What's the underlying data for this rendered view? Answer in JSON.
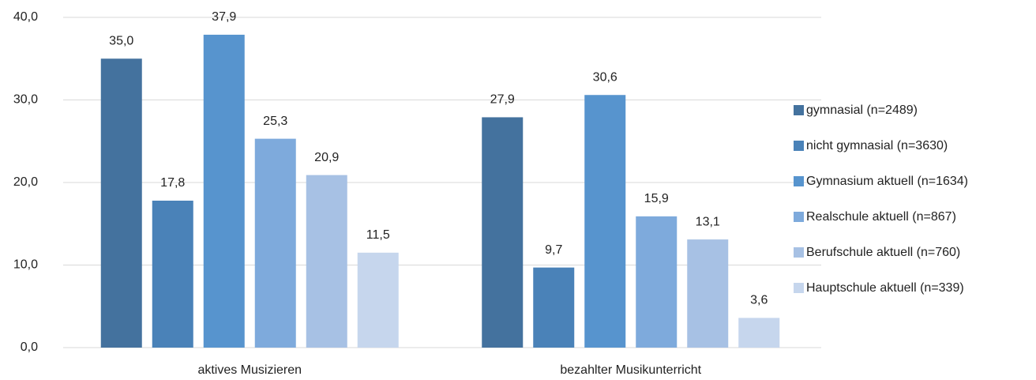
{
  "chart_data": {
    "type": "bar",
    "categories": [
      "aktives Musizieren",
      "bezahlter Musikunterricht"
    ],
    "series": [
      {
        "name": "gymnasial (n=2489)",
        "color": "#44729e",
        "values": [
          35.0,
          27.9
        ],
        "value_labels": [
          "35,0",
          "27,9"
        ]
      },
      {
        "name": "nicht gymnasial (n=3630)",
        "color": "#4a82b8",
        "values": [
          17.8,
          9.7
        ],
        "value_labels": [
          "17,8",
          "9,7"
        ]
      },
      {
        "name": "Gymnasium aktuell (n=1634)",
        "color": "#5794ce",
        "values": [
          37.9,
          30.6
        ],
        "value_labels": [
          "37,9",
          "30,6"
        ]
      },
      {
        "name": "Realschule aktuell (n=867)",
        "color": "#7eaadc",
        "values": [
          25.3,
          15.9
        ],
        "value_labels": [
          "25,3",
          "15,9"
        ]
      },
      {
        "name": "Berufschule aktuell (n=760)",
        "color": "#a7c1e4",
        "values": [
          20.9,
          13.1
        ],
        "value_labels": [
          "20,9",
          "13,1"
        ]
      },
      {
        "name": "Hauptschule aktuell (n=339)",
        "color": "#c6d6ed",
        "values": [
          11.5,
          3.6
        ],
        "value_labels": [
          "11,5",
          "3,6"
        ]
      }
    ],
    "ylim": [
      0,
      40
    ],
    "yticks": [
      {
        "value": 0,
        "label": "0,0"
      },
      {
        "value": 10,
        "label": "10,0"
      },
      {
        "value": 20,
        "label": "20,0"
      },
      {
        "value": 30,
        "label": "30,0"
      },
      {
        "value": 40,
        "label": "40,0"
      }
    ],
    "grid": true,
    "legend": "right"
  }
}
